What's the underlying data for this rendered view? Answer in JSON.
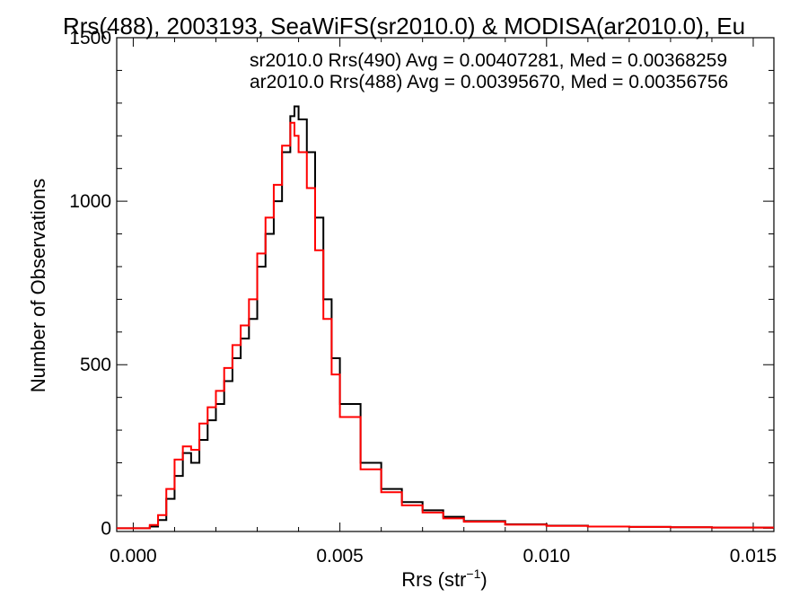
{
  "chart_data": {
    "type": "line",
    "style": "step",
    "title": "Rrs(488), 2003193, SeaWiFS(sr2010.0) & MODISA(ar2010.0), Eu",
    "xlabel": "Rrs (str",
    "xlabel_sup": "−1",
    "xlabel_suffix": ")",
    "ylabel": "Number of Observations",
    "xlim": [
      -0.0004,
      0.0155
    ],
    "ylim": [
      -10,
      1500
    ],
    "xticks": [
      0.0,
      0.005,
      0.01,
      0.015
    ],
    "xtick_labels": [
      "0.000",
      "0.005",
      "0.010",
      "0.015"
    ],
    "yticks": [
      0,
      500,
      1000,
      1500
    ],
    "ytick_labels": [
      "0",
      "500",
      "1000",
      "1500"
    ],
    "grid": false,
    "legend_placement": "top-right",
    "series": [
      {
        "name": "sr2010.0 Rrs(490) Avg = 0.00407281, Med = 0.00368259",
        "color": "#000000",
        "points": [
          [
            -0.0004,
            0
          ],
          [
            0.0,
            0
          ],
          [
            0.0004,
            5
          ],
          [
            0.0006,
            25
          ],
          [
            0.0008,
            90
          ],
          [
            0.001,
            160
          ],
          [
            0.0012,
            230
          ],
          [
            0.0014,
            200
          ],
          [
            0.0016,
            270
          ],
          [
            0.0018,
            330
          ],
          [
            0.002,
            380
          ],
          [
            0.0022,
            450
          ],
          [
            0.0024,
            520
          ],
          [
            0.0026,
            580
          ],
          [
            0.0028,
            640
          ],
          [
            0.003,
            800
          ],
          [
            0.0032,
            900
          ],
          [
            0.0034,
            1000
          ],
          [
            0.0036,
            1150
          ],
          [
            0.0038,
            1260
          ],
          [
            0.0039,
            1290
          ],
          [
            0.004,
            1250
          ],
          [
            0.0042,
            1150
          ],
          [
            0.0044,
            950
          ],
          [
            0.0046,
            700
          ],
          [
            0.0048,
            520
          ],
          [
            0.005,
            380
          ],
          [
            0.0055,
            200
          ],
          [
            0.006,
            120
          ],
          [
            0.0065,
            80
          ],
          [
            0.007,
            55
          ],
          [
            0.0075,
            35
          ],
          [
            0.008,
            22
          ],
          [
            0.009,
            12
          ],
          [
            0.01,
            8
          ],
          [
            0.011,
            5
          ],
          [
            0.012,
            4
          ],
          [
            0.013,
            3
          ],
          [
            0.014,
            2
          ],
          [
            0.0155,
            2
          ]
        ]
      },
      {
        "name": "ar2010.0 Rrs(488) Avg = 0.00395670, Med = 0.00356756",
        "color": "#ff0000",
        "points": [
          [
            -0.0004,
            0
          ],
          [
            0.0,
            0
          ],
          [
            0.0004,
            10
          ],
          [
            0.0006,
            40
          ],
          [
            0.0008,
            120
          ],
          [
            0.001,
            210
          ],
          [
            0.0012,
            250
          ],
          [
            0.0014,
            240
          ],
          [
            0.0016,
            320
          ],
          [
            0.0018,
            370
          ],
          [
            0.002,
            420
          ],
          [
            0.0022,
            490
          ],
          [
            0.0024,
            560
          ],
          [
            0.0026,
            620
          ],
          [
            0.0028,
            700
          ],
          [
            0.003,
            840
          ],
          [
            0.0032,
            950
          ],
          [
            0.0034,
            1050
          ],
          [
            0.0036,
            1170
          ],
          [
            0.0038,
            1240
          ],
          [
            0.0039,
            1200
          ],
          [
            0.004,
            1150
          ],
          [
            0.0042,
            1040
          ],
          [
            0.0044,
            850
          ],
          [
            0.0046,
            640
          ],
          [
            0.0048,
            470
          ],
          [
            0.005,
            340
          ],
          [
            0.0055,
            180
          ],
          [
            0.006,
            110
          ],
          [
            0.0065,
            70
          ],
          [
            0.007,
            48
          ],
          [
            0.0075,
            30
          ],
          [
            0.008,
            20
          ],
          [
            0.009,
            11
          ],
          [
            0.01,
            7
          ],
          [
            0.011,
            5
          ],
          [
            0.012,
            4
          ],
          [
            0.013,
            3
          ],
          [
            0.014,
            2
          ],
          [
            0.0155,
            2
          ]
        ]
      }
    ]
  }
}
